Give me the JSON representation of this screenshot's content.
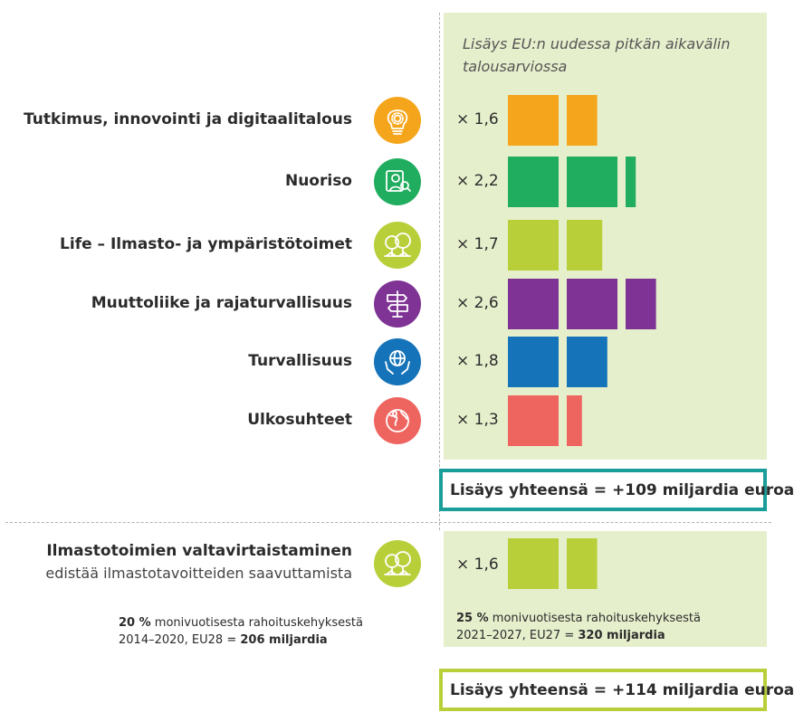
{
  "header": "Lisäys EU:n uudessa pitkän aikavälin talousarviossa",
  "chart_data": {
    "type": "bar",
    "unit_label": "kerroin",
    "categories": [
      {
        "label": "Tutkimus, innovointi ja digitaalitalous",
        "multiplier_text": "× 1,6",
        "value": 1.6,
        "color": "#f5a51b",
        "icon": "lightbulb-gear-icon"
      },
      {
        "label": "Nuoriso",
        "multiplier_text": "× 2,2",
        "value": 2.2,
        "color": "#21ad5f",
        "icon": "youth-person-icon"
      },
      {
        "label": "Life – Ilmasto- ja ympäristötoimet",
        "multiplier_text": "× 1,7",
        "value": 1.7,
        "color": "#b9cf3a",
        "icon": "trees-icon"
      },
      {
        "label": "Muuttoliike ja rajaturvallisuus",
        "multiplier_text": "× 2,6",
        "value": 2.6,
        "color": "#7f3395",
        "icon": "signpost-icon"
      },
      {
        "label": "Turvallisuus",
        "multiplier_text": "× 1,8",
        "value": 1.8,
        "color": "#1573b9",
        "icon": "globe-hands-icon"
      },
      {
        "label": "Ulkosuhteet",
        "multiplier_text": "× 1,3",
        "value": 1.3,
        "color": "#ee6560",
        "icon": "world-map-pin-icon"
      }
    ],
    "climate": {
      "title": "Ilmastotoimien valtavirtaistaminen",
      "subtitle": "edistää ilmastotavoitteiden saavuttamista",
      "multiplier_text": "× 1,6",
      "value": 1.6,
      "color": "#b9cf3a",
      "icon": "trees-icon"
    }
  },
  "totals": {
    "main": "Lisäys yhteensä = +109 miljardia euroa",
    "main_color": "#1a9e9a",
    "climate": "Lisäys yhteensä = +114 miljardia euroa",
    "climate_color": "#b9cf3a"
  },
  "notes": {
    "old": {
      "pct": "20 %",
      "line1_rest": " monivuotisesta rahoituskehyksestä",
      "line2_prefix": "2014–2020, EU28 = ",
      "amount": "206 miljardia"
    },
    "new": {
      "pct": "25 %",
      "line1_rest": " monivuotisesta rahoituskehyksestä",
      "line2_prefix": "2021–2027, EU27 = ",
      "amount": "320 miljardia"
    }
  }
}
